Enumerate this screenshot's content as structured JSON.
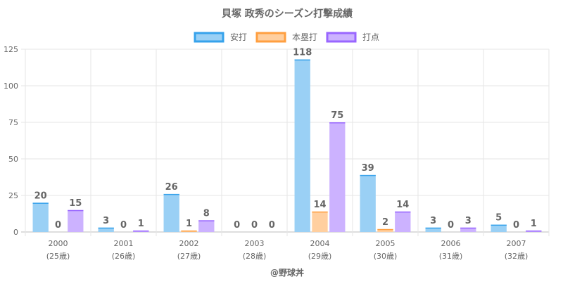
{
  "chart_data": {
    "type": "bar",
    "title": "貝塚 政秀のシーズン打撃成績",
    "categories": [
      "2000",
      "2001",
      "2002",
      "2003",
      "2004",
      "2005",
      "2006",
      "2007"
    ],
    "category_sublabels": [
      "(25歳)",
      "(26歳)",
      "(27歳)",
      "(28歳)",
      "(29歳)",
      "(30歳)",
      "(31歳)",
      "(32歳)"
    ],
    "series": [
      {
        "name": "安打",
        "values": [
          20,
          3,
          26,
          0,
          118,
          39,
          3,
          5
        ],
        "fill": "#9ad0f5",
        "stroke": "#36a2eb"
      },
      {
        "name": "本塁打",
        "values": [
          0,
          0,
          1,
          0,
          14,
          2,
          0,
          0
        ],
        "fill": "#ffcf9f",
        "stroke": "#ff9f40"
      },
      {
        "name": "打点",
        "values": [
          15,
          1,
          8,
          0,
          75,
          14,
          3,
          1
        ],
        "fill": "#ccb2ff",
        "stroke": "#9966ff"
      }
    ],
    "y_ticks": [
      0,
      25,
      50,
      75,
      100,
      125
    ],
    "ylim": [
      0,
      125
    ],
    "legend_position": "top",
    "grid": true,
    "footer": "@野球丼"
  }
}
